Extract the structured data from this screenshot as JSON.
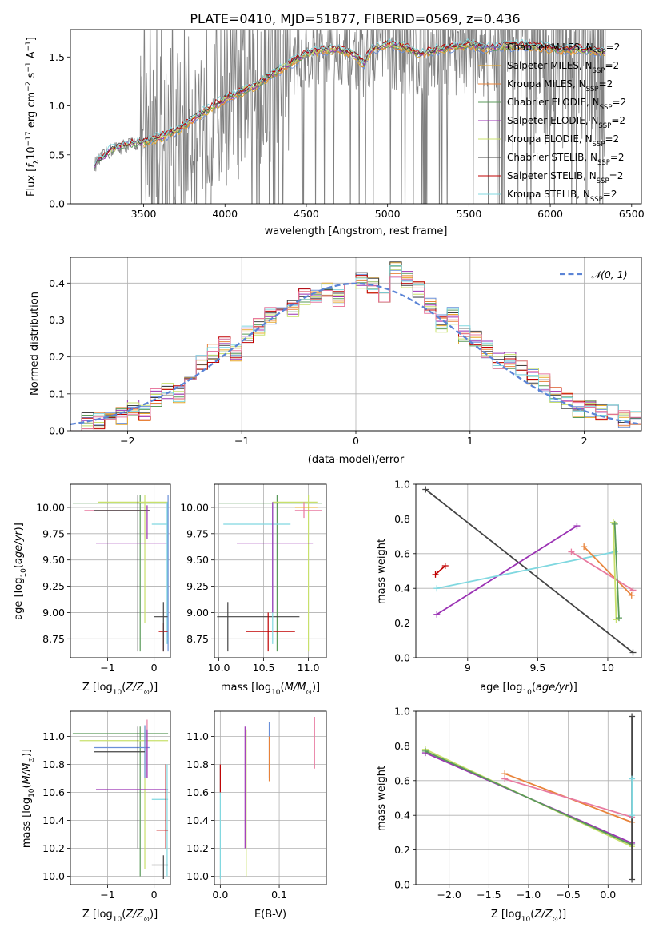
{
  "title": "PLATE=0410, MJD=51877, FIBERID=0569, z=0.436",
  "colors": {
    "chabrier_miles": "#6a8fd8",
    "salpeter_miles": "#e8a82a",
    "kroupa_miles": "#e8833a",
    "chabrier_elodie": "#5a9a5a",
    "salpeter_elodie": "#9b32b4",
    "kroupa_elodie": "#c8e06c",
    "chabrier_stelib": "#444444",
    "salpeter_stelib": "#c00000",
    "kroupa_stelib": "#80d8e0",
    "extra_pink": "#e87aa0",
    "data": "#808080",
    "normal": "#5b84d6"
  },
  "chart_data": [
    {
      "type": "line",
      "name": "spectrum",
      "xlabel": "wavelength [Angstrom, rest frame]",
      "ylabel": "Flux [f_λ 10⁻¹⁷ erg cm⁻² s⁻¹ A⁻¹]",
      "xlim": [
        3050,
        6560
      ],
      "ylim": [
        0,
        1.78
      ],
      "xticks": [
        3500,
        4000,
        4500,
        5000,
        5500,
        6000,
        6500
      ],
      "yticks": [
        0.0,
        0.5,
        1.0,
        1.5
      ],
      "legend_position": "top-right",
      "legend": [
        {
          "label": "Chabrier MILES, N_SSP=2",
          "text": "Chabrier MILES, N",
          "sub": "SSP",
          "tail": "=2",
          "color_key": "chabrier_miles"
        },
        {
          "label": "Salpeter MILES, N_SSP=2",
          "text": "Salpeter MILES, N",
          "sub": "SSP",
          "tail": "=2",
          "color_key": "salpeter_miles"
        },
        {
          "label": "Kroupa MILES, N_SSP=2",
          "text": "Kroupa MILES, N",
          "sub": "SSP",
          "tail": "=2",
          "color_key": "kroupa_miles"
        },
        {
          "label": "Chabrier ELODIE, N_SSP=2",
          "text": "Chabrier ELODIE, N",
          "sub": "SSP",
          "tail": "=2",
          "color_key": "chabrier_elodie"
        },
        {
          "label": "Salpeter ELODIE, N_SSP=2",
          "text": "Salpeter ELODIE, N",
          "sub": "SSP",
          "tail": "=2",
          "color_key": "salpeter_elodie"
        },
        {
          "label": "Kroupa ELODIE, N_SSP=2",
          "text": "Kroupa ELODIE, N",
          "sub": "SSP",
          "tail": "=2",
          "color_key": "kroupa_elodie"
        },
        {
          "label": "Chabrier STELIB, N_SSP=2",
          "text": "Chabrier STELIB, N",
          "sub": "SSP",
          "tail": "=2",
          "color_key": "chabrier_stelib"
        },
        {
          "label": "Salpeter STELIB, N_SSP=2",
          "text": "Salpeter STELIB, N",
          "sub": "SSP",
          "tail": "=2",
          "color_key": "salpeter_stelib"
        },
        {
          "label": "Kroupa STELIB, N_SSP=2",
          "text": "Kroupa STELIB, N",
          "sub": "SSP",
          "tail": "=2",
          "color_key": "kroupa_stelib"
        }
      ],
      "model_continuum": {
        "x": [
          3200,
          3300,
          3400,
          3500,
          3600,
          3700,
          3800,
          3900,
          4000,
          4100,
          4200,
          4300,
          4400,
          4500,
          4600,
          4700,
          4800,
          4850,
          4900,
          5000,
          5100,
          5200,
          5300,
          5400,
          5500,
          5600,
          5700,
          5800,
          5900,
          6000,
          6100,
          6200,
          6300
        ],
        "y": [
          0.4,
          0.55,
          0.6,
          0.63,
          0.68,
          0.74,
          0.86,
          0.97,
          1.07,
          1.14,
          1.22,
          1.33,
          1.43,
          1.53,
          1.57,
          1.58,
          1.52,
          1.42,
          1.58,
          1.63,
          1.6,
          1.53,
          1.57,
          1.6,
          1.63,
          1.59,
          1.61,
          1.62,
          1.61,
          1.59,
          1.57,
          1.58,
          1.56
        ]
      }
    },
    {
      "type": "line",
      "name": "residual_histogram",
      "xlabel": "(data-model)/error",
      "ylabel": "Normed distribution",
      "xlim": [
        -2.5,
        2.5
      ],
      "ylim": [
        0,
        0.47
      ],
      "xticks": [
        -2,
        -1,
        0,
        1,
        2
      ],
      "yticks": [
        0.0,
        0.1,
        0.2,
        0.3,
        0.4
      ],
      "legend_position": "top-right",
      "normal_label": "𝒩(0, 1)",
      "bin_width": 0.1,
      "bins_start": -2.5,
      "histogram": [
        0.0,
        0.03,
        0.03,
        0.05,
        0.04,
        0.06,
        0.05,
        0.09,
        0.11,
        0.1,
        0.15,
        0.19,
        0.21,
        0.23,
        0.21,
        0.26,
        0.28,
        0.31,
        0.34,
        0.33,
        0.36,
        0.37,
        0.38,
        0.36,
        0.4,
        0.41,
        0.39,
        0.37,
        0.44,
        0.41,
        0.38,
        0.34,
        0.29,
        0.31,
        0.26,
        0.25,
        0.22,
        0.19,
        0.19,
        0.17,
        0.15,
        0.13,
        0.1,
        0.08,
        0.06,
        0.06,
        0.05,
        0.05,
        0.03,
        0.03
      ]
    },
    {
      "type": "scatter",
      "name": "age_vs_Z",
      "xlabel": "Z [log10(Z/Z☉)]",
      "ylabel": "age [log10(age/yr)]",
      "xlim": [
        -1.8,
        0.35
      ],
      "ylim": [
        8.57,
        10.22
      ],
      "xticks": [
        -1,
        0
      ],
      "yticks": [
        8.75,
        9.0,
        9.25,
        9.5,
        9.75,
        10.0
      ]
    },
    {
      "type": "scatter",
      "name": "age_vs_mass",
      "xlabel": "mass [log10(M/M☉)]",
      "ylabel": "",
      "xlim": [
        9.95,
        11.2
      ],
      "ylim": [
        8.57,
        10.22
      ],
      "xticks": [
        10.0,
        10.5,
        11.0
      ],
      "yticks": [
        8.75,
        9.0,
        9.25,
        9.5,
        9.75,
        10.0
      ]
    },
    {
      "type": "line",
      "name": "weight_vs_age",
      "xlabel": "age [log10(age/yr)]",
      "ylabel": "mass weight",
      "xlim": [
        8.63,
        10.24
      ],
      "ylim": [
        0.0,
        1.0
      ],
      "xticks": [
        9.0,
        9.5,
        10.0
      ],
      "yticks": [
        0.0,
        0.2,
        0.4,
        0.6,
        0.8,
        1.0
      ],
      "series": [
        {
          "color_key": "chabrier_stelib",
          "x": [
            8.7,
            10.18
          ],
          "y": [
            0.97,
            0.03
          ]
        },
        {
          "color_key": "salpeter_elodie",
          "x": [
            8.78,
            9.78
          ],
          "y": [
            0.25,
            0.76
          ]
        },
        {
          "color_key": "kroupa_stelib",
          "x": [
            8.78,
            10.05
          ],
          "y": [
            0.4,
            0.61
          ]
        },
        {
          "color_key": "salpeter_stelib",
          "x": [
            8.77,
            8.84
          ],
          "y": [
            0.48,
            0.53
          ]
        },
        {
          "color_key": "kroupa_miles",
          "x": [
            9.83,
            10.17
          ],
          "y": [
            0.64,
            0.36
          ]
        },
        {
          "color_key": "extra_pink",
          "x": [
            9.74,
            10.18
          ],
          "y": [
            0.61,
            0.39
          ]
        },
        {
          "color_key": "kroupa_elodie",
          "x": [
            10.04,
            10.06
          ],
          "y": [
            0.78,
            0.22
          ]
        },
        {
          "color_key": "chabrier_elodie",
          "x": [
            10.05,
            10.08
          ],
          "y": [
            0.77,
            0.23
          ]
        }
      ]
    },
    {
      "type": "scatter",
      "name": "mass_vs_Z",
      "xlabel": "Z [log10(Z/Z☉)]",
      "ylabel": "mass [log10(M/M☉)]",
      "xlim": [
        -1.8,
        0.35
      ],
      "ylim": [
        9.94,
        11.18
      ],
      "xticks": [
        -1,
        0
      ],
      "yticks": [
        10.0,
        10.2,
        10.4,
        10.6,
        10.8,
        11.0
      ]
    },
    {
      "type": "scatter",
      "name": "mass_vs_ebv",
      "xlabel": "E(B-V)",
      "ylabel": "",
      "xlim": [
        -0.01,
        0.18
      ],
      "ylim": [
        9.94,
        11.18
      ],
      "xticks": [
        0.0,
        0.1
      ],
      "yticks": [
        10.0,
        10.2,
        10.4,
        10.6,
        10.8,
        11.0
      ]
    },
    {
      "type": "line",
      "name": "weight_vs_Z",
      "xlabel": "Z [log10(Z/Z☉)]",
      "ylabel": "mass weight",
      "xlim": [
        -2.42,
        0.42
      ],
      "ylim": [
        0.0,
        1.0
      ],
      "xticks": [
        -2.0,
        -1.5,
        -1.0,
        -0.5,
        0.0
      ],
      "yticks": [
        0.0,
        0.2,
        0.4,
        0.6,
        0.8,
        1.0
      ],
      "series": [
        {
          "color_key": "salpeter_elodie",
          "x": [
            -2.3,
            0.3
          ],
          "y": [
            0.76,
            0.24
          ]
        },
        {
          "color_key": "kroupa_elodie",
          "x": [
            -2.3,
            0.3
          ],
          "y": [
            0.78,
            0.22
          ]
        },
        {
          "color_key": "chabrier_elodie",
          "x": [
            -2.3,
            0.3
          ],
          "y": [
            0.77,
            0.23
          ]
        },
        {
          "color_key": "kroupa_miles",
          "x": [
            -1.3,
            0.3
          ],
          "y": [
            0.64,
            0.36
          ]
        },
        {
          "color_key": "extra_pink",
          "x": [
            -1.3,
            0.3
          ],
          "y": [
            0.61,
            0.39
          ]
        },
        {
          "color_key": "chabrier_stelib",
          "x": [
            0.3,
            0.3
          ],
          "y": [
            0.97,
            0.03
          ]
        },
        {
          "color_key": "kroupa_stelib",
          "x": [
            0.3,
            0.3
          ],
          "y": [
            0.61,
            0.4
          ]
        }
      ]
    }
  ]
}
